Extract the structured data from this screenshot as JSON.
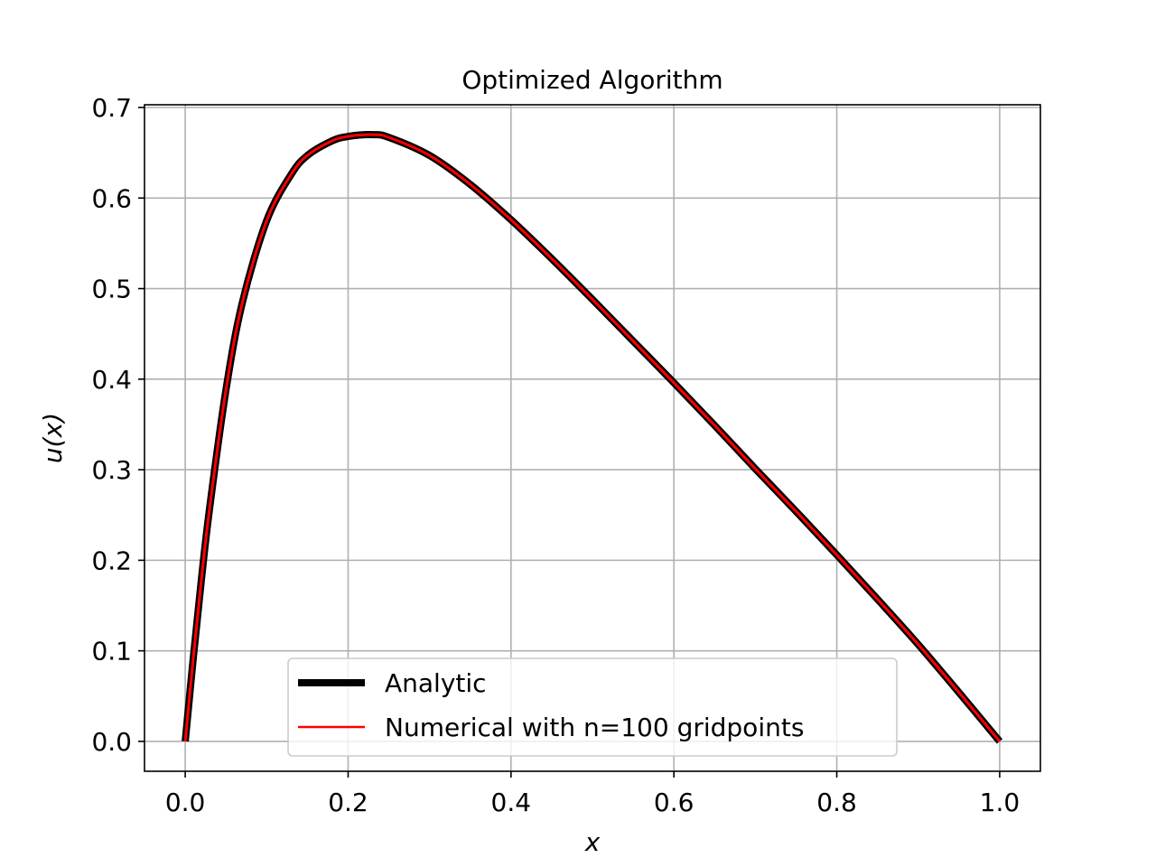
{
  "chart_data": {
    "type": "line",
    "title": "Optimized Algorithm",
    "xlabel": "x",
    "ylabel": "u(x)",
    "xlim": [
      -0.05,
      1.05
    ],
    "ylim": [
      -0.033,
      0.703
    ],
    "xticks": [
      0.0,
      0.2,
      0.4,
      0.6,
      0.8,
      1.0
    ],
    "xtick_labels": [
      "0.0",
      "0.2",
      "0.4",
      "0.6",
      "0.8",
      "1.0"
    ],
    "yticks": [
      0.0,
      0.1,
      0.2,
      0.3,
      0.4,
      0.5,
      0.6,
      0.7
    ],
    "ytick_labels": [
      "0.0",
      "0.1",
      "0.2",
      "0.3",
      "0.4",
      "0.5",
      "0.6",
      "0.7"
    ],
    "grid": true,
    "legend_position": "lower-center",
    "x": [
      0.0,
      0.01,
      0.02,
      0.03,
      0.05,
      0.07,
      0.1,
      0.13,
      0.15,
      0.18,
      0.2,
      0.23,
      0.25,
      0.3,
      0.35,
      0.4,
      0.45,
      0.5,
      0.55,
      0.6,
      0.65,
      0.7,
      0.75,
      0.8,
      0.85,
      0.9,
      0.95,
      1.0
    ],
    "series": [
      {
        "name": "Analytic",
        "color": "#000000",
        "values": [
          0.0,
          0.093,
          0.18,
          0.258,
          0.388,
          0.484,
          0.575,
          0.626,
          0.647,
          0.663,
          0.668,
          0.67,
          0.667,
          0.647,
          0.615,
          0.576,
          0.533,
          0.488,
          0.442,
          0.396,
          0.349,
          0.301,
          0.254,
          0.206,
          0.157,
          0.107,
          0.054,
          0.0
        ]
      },
      {
        "name": "Numerical with n=100 gridpoints",
        "color": "#ff0000",
        "values": [
          0.0,
          0.093,
          0.18,
          0.258,
          0.388,
          0.484,
          0.575,
          0.626,
          0.647,
          0.663,
          0.668,
          0.67,
          0.667,
          0.647,
          0.615,
          0.576,
          0.533,
          0.488,
          0.442,
          0.396,
          0.349,
          0.301,
          0.254,
          0.206,
          0.157,
          0.107,
          0.054,
          0.0
        ]
      }
    ]
  }
}
